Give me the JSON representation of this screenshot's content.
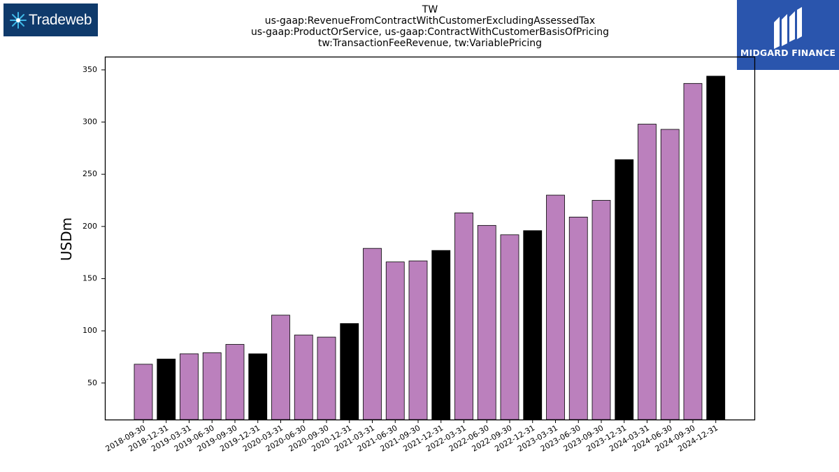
{
  "logos": {
    "left": {
      "text": "Tradeweb",
      "bg": "#0f3a6b",
      "icon": "starburst-icon"
    },
    "right": {
      "text": "MIDGARD FINANCE",
      "bg": "#2a55ad",
      "icon": "midgard-m-icon"
    }
  },
  "chart_data": {
    "type": "bar",
    "title": "TW",
    "subtitle_lines": [
      "us-gaap:RevenueFromContractWithCustomerExcludingAssessedTax",
      "us-gaap:ProductOrService, us-gaap:ContractWithCustomerBasisOfPricing",
      "tw:TransactionFeeRevenue, tw:VariablePricing"
    ],
    "xlabel": "",
    "ylabel": "USDm",
    "ylim": [
      15,
      362
    ],
    "yticks": [
      50,
      100,
      150,
      200,
      250,
      300,
      350
    ],
    "grid": false,
    "colors": {
      "quarter": "#bb80bd",
      "year_end": "#000000",
      "edge": "#000000"
    },
    "categories": [
      "2018-09-30",
      "2018-12-31",
      "2019-03-31",
      "2019-06-30",
      "2019-09-30",
      "2019-12-31",
      "2020-03-31",
      "2020-06-30",
      "2020-09-30",
      "2020-12-31",
      "2021-03-31",
      "2021-06-30",
      "2021-09-30",
      "2021-12-31",
      "2022-03-31",
      "2022-06-30",
      "2022-09-30",
      "2022-12-31",
      "2023-03-31",
      "2023-06-30",
      "2023-09-30",
      "2023-12-31",
      "2024-03-31",
      "2024-06-30",
      "2024-09-30",
      "2024-12-31"
    ],
    "values": [
      68,
      73,
      78,
      79,
      87,
      78,
      115,
      96,
      94,
      107,
      179,
      166,
      167,
      177,
      213,
      201,
      192,
      196,
      230,
      209,
      225,
      264,
      298,
      293,
      337,
      344
    ]
  }
}
